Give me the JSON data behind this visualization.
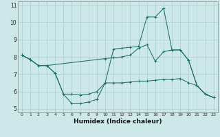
{
  "xlabel": "Humidex (Indice chaleur)",
  "xlim": [
    -0.5,
    23.5
  ],
  "ylim": [
    4.8,
    11.2
  ],
  "yticks": [
    5,
    6,
    7,
    8,
    9,
    10,
    11
  ],
  "xticks": [
    0,
    1,
    2,
    3,
    4,
    5,
    6,
    7,
    8,
    9,
    10,
    11,
    12,
    13,
    14,
    15,
    16,
    17,
    18,
    19,
    20,
    21,
    22,
    23
  ],
  "bg_color": "#cce8e8",
  "line_color": "#1a6e6a",
  "grid_color": "#aacece",
  "line1": {
    "x": [
      0,
      1,
      2,
      3,
      4,
      5,
      6,
      7,
      8,
      9,
      10,
      11,
      12,
      13,
      14,
      15,
      16,
      17,
      18,
      19,
      20,
      21,
      22,
      23
    ],
    "y": [
      8.1,
      7.85,
      7.5,
      7.5,
      7.05,
      5.85,
      5.3,
      5.3,
      5.4,
      5.55,
      6.5,
      6.5,
      6.5,
      6.55,
      6.6,
      6.6,
      6.65,
      6.7,
      6.7,
      6.75,
      6.5,
      6.35,
      5.85,
      5.65
    ]
  },
  "line2": {
    "x": [
      0,
      1,
      2,
      3,
      4,
      5,
      6,
      7,
      8,
      9,
      10,
      11,
      12,
      13,
      14,
      15,
      16,
      17,
      18,
      19,
      20,
      21,
      22,
      23
    ],
    "y": [
      8.1,
      7.85,
      7.5,
      7.5,
      7.05,
      5.85,
      5.85,
      5.8,
      5.85,
      6.0,
      6.5,
      8.45,
      8.5,
      8.55,
      8.6,
      10.3,
      10.3,
      10.8,
      8.4,
      8.4,
      7.8,
      6.35,
      5.85,
      5.65
    ]
  },
  "line3": {
    "x": [
      0,
      1,
      2,
      3,
      10,
      11,
      12,
      13,
      14,
      15,
      16,
      17,
      18,
      19,
      20,
      21,
      22,
      23
    ],
    "y": [
      8.1,
      7.85,
      7.5,
      7.5,
      7.9,
      7.95,
      8.0,
      8.1,
      8.5,
      8.7,
      7.75,
      8.3,
      8.4,
      8.4,
      7.8,
      6.35,
      5.85,
      5.65
    ]
  }
}
